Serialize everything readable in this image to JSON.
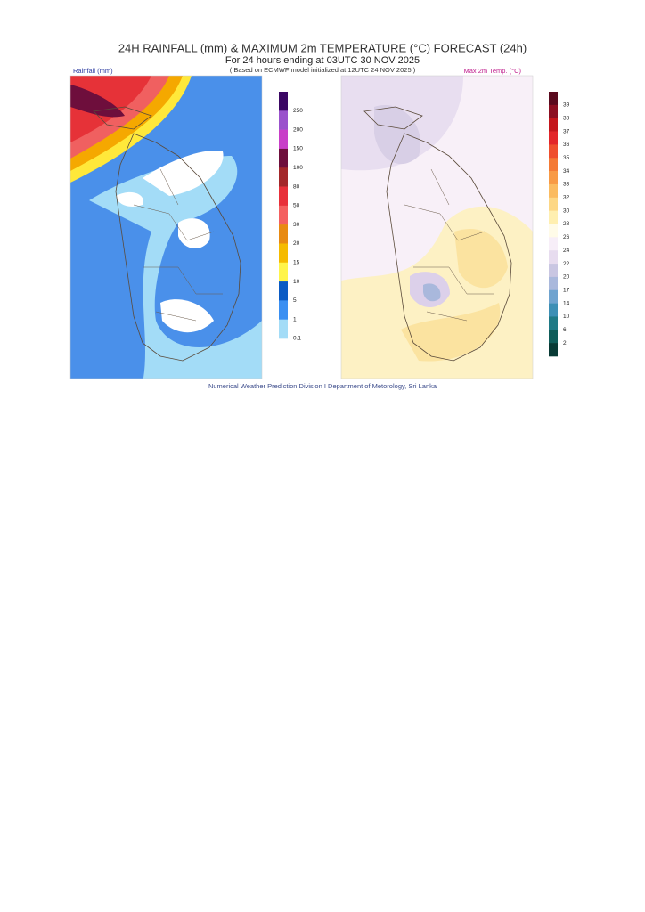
{
  "header": {
    "title": "24H RAINFALL (mm) & MAXIMUM 2m TEMPERATURE (°C) FORECAST (24h)",
    "subtitle": "For 24 hours ending at 03UTC 30 NOV 2025",
    "note": "( Based on ECMWF model initialized at 12UTC 24 NOV 2025 )"
  },
  "rainfall_panel": {
    "label": "Rainfall (mm)",
    "legend": {
      "labels": [
        "250",
        "200",
        "150",
        "100",
        "80",
        "50",
        "30",
        "20",
        "15",
        "10",
        "5",
        "1",
        "0.1"
      ],
      "colors": [
        "#3b0764",
        "#9a52cc",
        "#c83ec8",
        "#6e0e3c",
        "#a3272a",
        "#e8303a",
        "#f46060",
        "#e88a12",
        "#f5bb00",
        "#fff44a",
        "#0b5bc4",
        "#3a8ff2",
        "#a3dcf7"
      ]
    }
  },
  "temperature_panel": {
    "label": "Max 2m Temp. (°C)",
    "legend": {
      "labels": [
        "39",
        "38",
        "37",
        "36",
        "35",
        "34",
        "33",
        "32",
        "30",
        "28",
        "26",
        "24",
        "22",
        "20",
        "17",
        "14",
        "10",
        "6",
        "2"
      ],
      "colors": [
        "#5a0a1e",
        "#8c0f22",
        "#c4161c",
        "#e3262a",
        "#ef4f2e",
        "#f47a35",
        "#f89a45",
        "#fbbb60",
        "#fdd785",
        "#ffefb0",
        "#fffbe8",
        "#f7eef8",
        "#e7dcef",
        "#c9c6e2",
        "#a9b8dc",
        "#6fa3cf",
        "#3d8fb5",
        "#1f7a86",
        "#0f5d5a",
        "#083a35"
      ]
    }
  },
  "footer": "Numerical Weather Prediction Division I Department of Metorology, Sri Lanka"
}
